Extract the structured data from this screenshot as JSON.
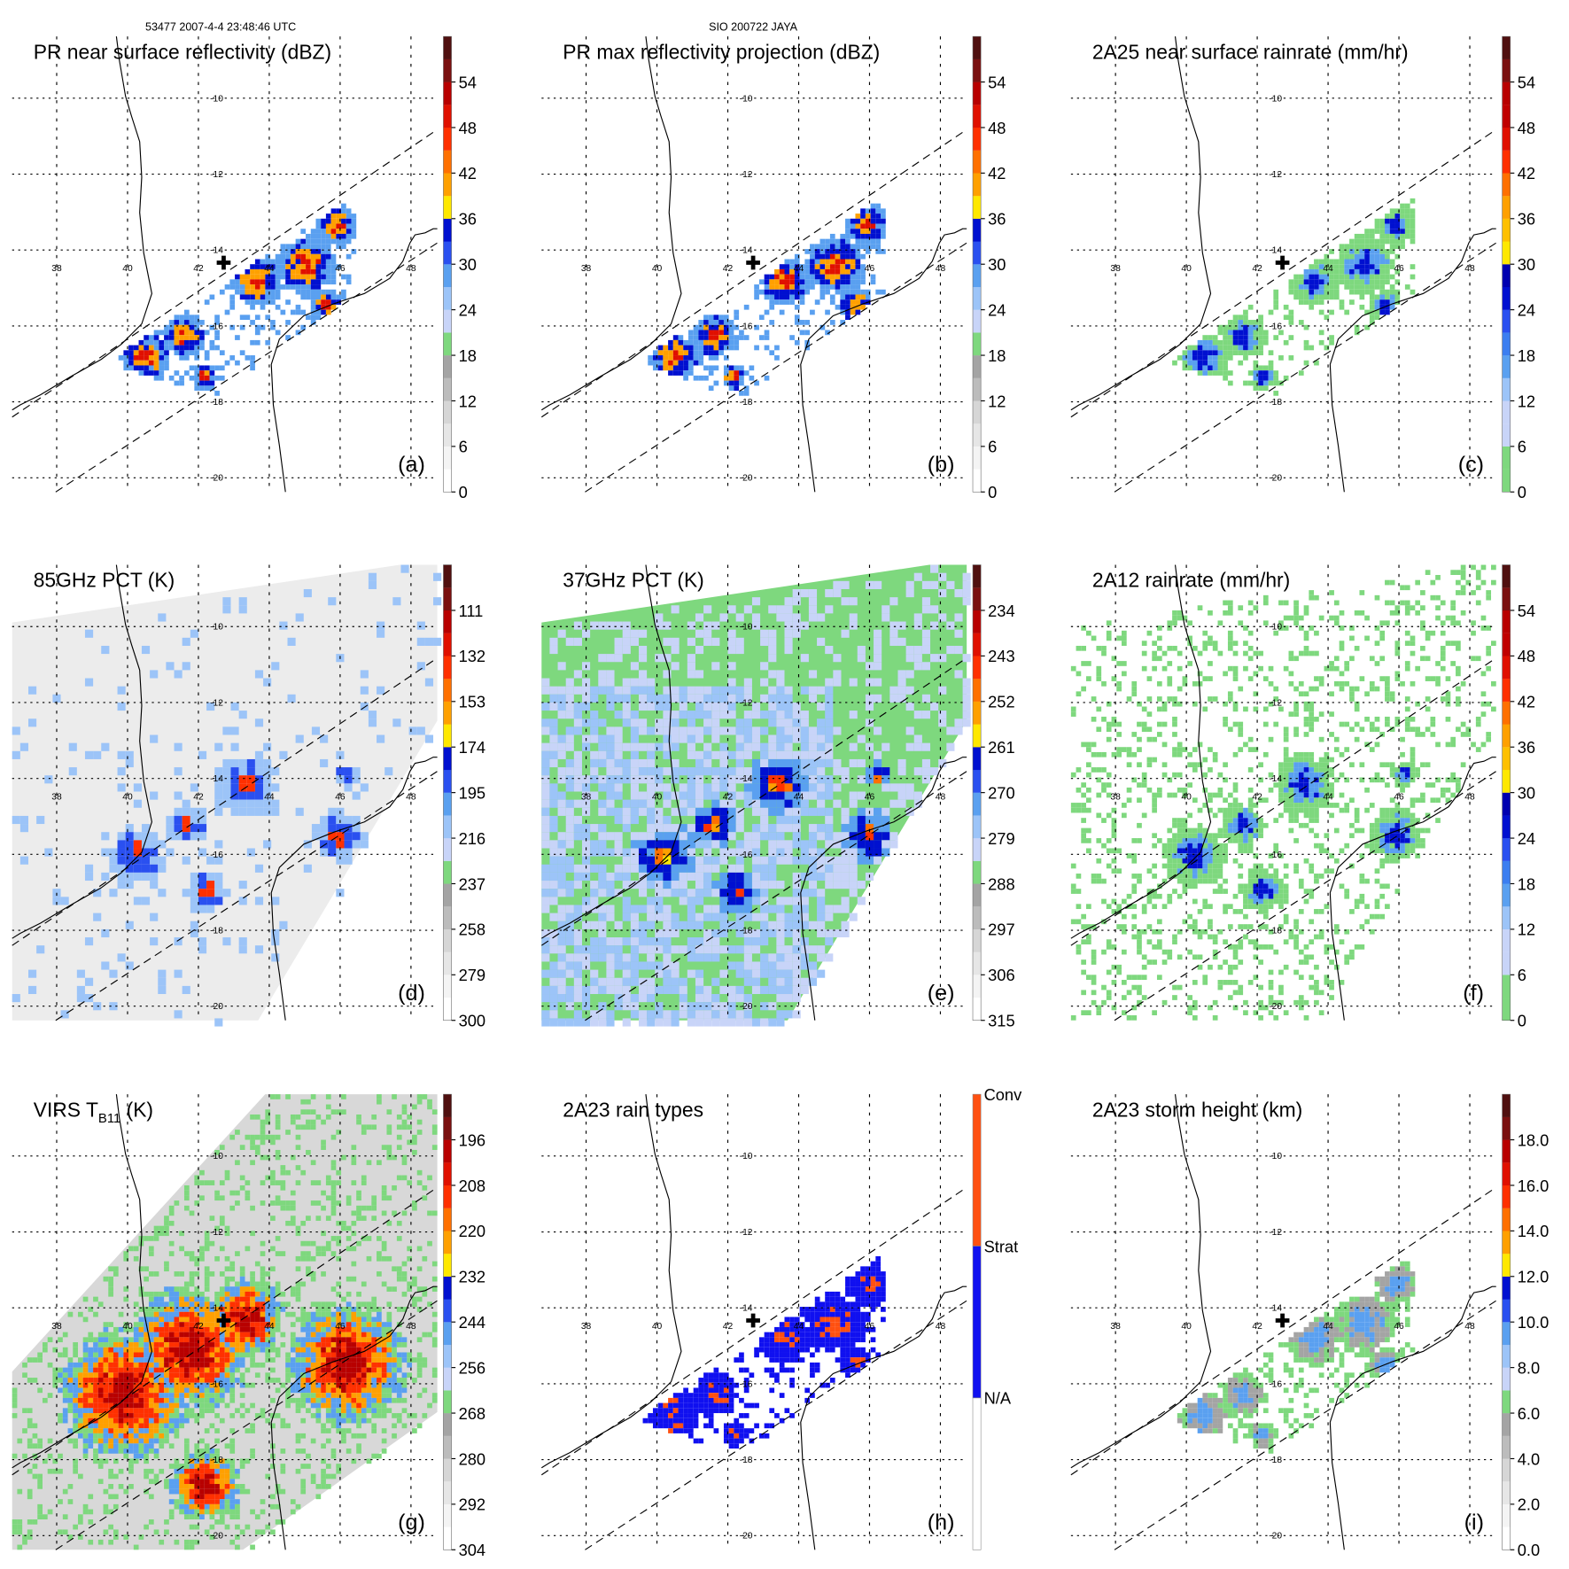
{
  "header": {
    "left": "53477 2007-4-4 23:48:46 UTC",
    "center": "SIO 200722 JAYA"
  },
  "lon_labels": [
    "38",
    "40",
    "42",
    "44",
    "46",
    "48"
  ],
  "lat_labels": [
    "-10",
    "-12",
    "-14",
    "-16",
    "-18",
    "-20"
  ],
  "panels": [
    {
      "title": "PR near surface reflectivity (dBZ)",
      "letter": "(a)",
      "ticks": [
        "0",
        "6",
        "12",
        "18",
        "24",
        "30",
        "36",
        "42",
        "48",
        "54"
      ]
    },
    {
      "title": "PR max reflectivity projection (dBZ)",
      "letter": "(b)",
      "ticks": [
        "0",
        "6",
        "12",
        "18",
        "24",
        "30",
        "36",
        "42",
        "48",
        "54"
      ]
    },
    {
      "title": "2A25 near surface rainrate (mm/hr)",
      "letter": "(c)",
      "ticks": [
        "0",
        "6",
        "12",
        "18",
        "24",
        "30",
        "36",
        "42",
        "48",
        "54"
      ]
    },
    {
      "title": "85GHz PCT (K)",
      "letter": "(d)",
      "ticks": [
        "300",
        "279",
        "258",
        "237",
        "216",
        "195",
        "174",
        "153",
        "132",
        "111"
      ]
    },
    {
      "title": "37GHz PCT (K)",
      "letter": "(e)",
      "ticks": [
        "315",
        "306",
        "297",
        "288",
        "279",
        "270",
        "261",
        "252",
        "243",
        "234"
      ]
    },
    {
      "title": "2A12 rainrate (mm/hr)",
      "letter": "(f)",
      "ticks": [
        "0",
        "6",
        "12",
        "18",
        "24",
        "30",
        "36",
        "42",
        "48",
        "54"
      ]
    },
    {
      "title": "VIRS T",
      "title_sub": "B11",
      "title_end": " (K)",
      "letter": "(g)",
      "ticks": [
        "304",
        "292",
        "280",
        "268",
        "256",
        "244",
        "232",
        "220",
        "208",
        "196"
      ]
    },
    {
      "title": "2A23 rain types",
      "letter": "(h)",
      "ticks": [
        "N/A",
        "Strat",
        "Conv"
      ]
    },
    {
      "title": "2A23 storm height (km)",
      "letter": "(i)",
      "ticks": [
        "0.0",
        "2.0",
        "4.0",
        "6.0",
        "8.0",
        "10.0",
        "12.0",
        "14.0",
        "16.0",
        "18.0"
      ]
    }
  ],
  "colors": {
    "refl": [
      "#ffffff",
      "#f4f4f4",
      "#e6e6e6",
      "#d6d6d6",
      "#bcbcbc",
      "#a4a4a4",
      "#7ed87e",
      "#c8d4f8",
      "#9cc4f8",
      "#5aa0f0",
      "#2a50f0",
      "#0010d0",
      "#ffe800",
      "#ffa000",
      "#ff7000",
      "#ff3000",
      "#e01000",
      "#b80000",
      "#7a1010",
      "#501010"
    ],
    "rain": [
      "#7ed87e",
      "#7ed87e",
      "#c8d4f8",
      "#c8d4f8",
      "#9cc4f8",
      "#5aa0f0",
      "#3c7ef0",
      "#2a50f0",
      "#0010d0",
      "#0000b0",
      "#ffe800",
      "#ffc000",
      "#ffa000",
      "#ff7000",
      "#ff3000",
      "#e01000",
      "#c00000",
      "#b80000",
      "#7a1010",
      "#501010"
    ],
    "types": [
      "#ffffff",
      "#1010f0",
      "#ff5010"
    ]
  }
}
